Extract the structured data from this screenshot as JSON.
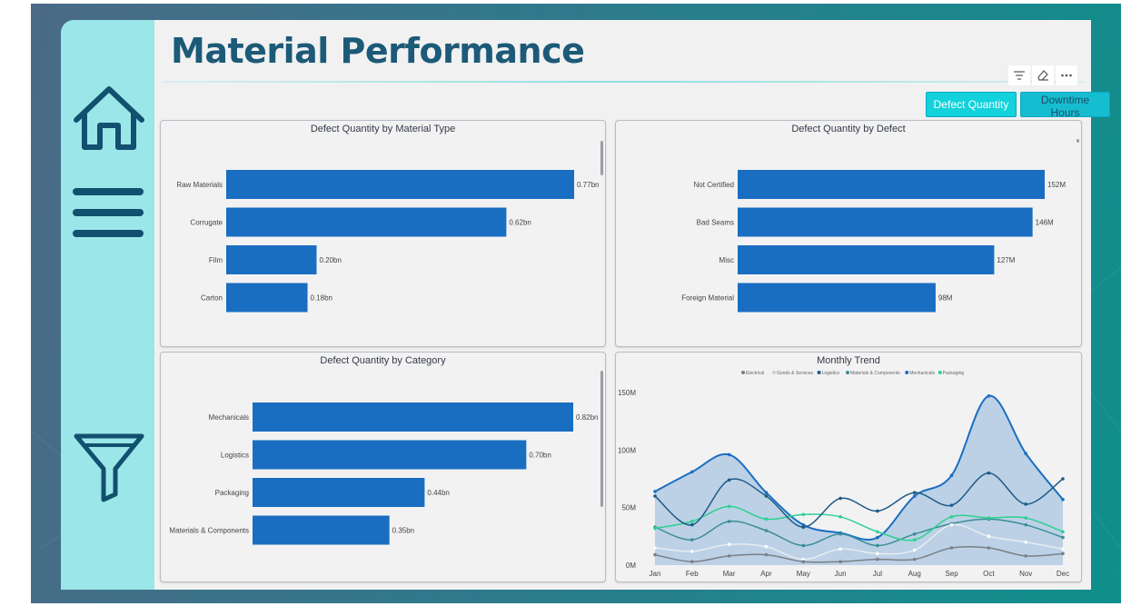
{
  "page": {
    "title": "Material Performance"
  },
  "sidebar": {
    "items": [
      {
        "name": "home",
        "icon": "home-icon"
      },
      {
        "name": "menu",
        "icon": "hamburger-menu-icon"
      },
      {
        "name": "filter",
        "icon": "filter-funnel-icon"
      }
    ]
  },
  "toolbar": {
    "icons": [
      "filter-icon",
      "eraser-icon",
      "more-options-icon"
    ]
  },
  "toggles": {
    "defect_label": "Defect Quantity",
    "downtime_label": "Downtime Hours"
  },
  "colors": {
    "bar": "#1a6ec1",
    "accent": "#13d2dc",
    "title": "#1c5a78",
    "sidebar": "#9be6e8"
  },
  "chart_data": [
    {
      "type": "bar",
      "orientation": "horizontal",
      "title": "Defect Quantity by Material Type",
      "categories": [
        "Raw Materials",
        "Corrugate",
        "Film",
        "Carton"
      ],
      "values": [
        0.77,
        0.62,
        0.2,
        0.18
      ],
      "labels": [
        "0.77bn",
        "0.62bn",
        "0.20bn",
        "0.18bn"
      ],
      "xlim": [
        0,
        0.77
      ]
    },
    {
      "type": "bar",
      "orientation": "horizontal",
      "title": "Defect Quantity by Defect",
      "categories": [
        "Not Certified",
        "Bad Seams",
        "Misc",
        "Foreign Material"
      ],
      "values": [
        152,
        146,
        127,
        98
      ],
      "labels": [
        "152M",
        "146M",
        "127M",
        "98M"
      ],
      "xlim": [
        0,
        152
      ]
    },
    {
      "type": "bar",
      "orientation": "horizontal",
      "title": "Defect Quantity by Category",
      "categories": [
        "Mechanicals",
        "Logistics",
        "Packaging",
        "Materials & Components"
      ],
      "values": [
        0.82,
        0.7,
        0.44,
        0.35
      ],
      "labels": [
        "0.82bn",
        "0.70bn",
        "0.44bn",
        "0.35bn"
      ],
      "xlim": [
        0,
        0.82
      ]
    },
    {
      "type": "line",
      "title": "Monthly Trend",
      "x": [
        "Jan",
        "Feb",
        "Mar",
        "Apr",
        "May",
        "Jun",
        "Jul",
        "Aug",
        "Sep",
        "Oct",
        "Nov",
        "Dec"
      ],
      "y_ticks": [
        "0M",
        "50M",
        "100M",
        "150M"
      ],
      "ylim": [
        0,
        150
      ],
      "series": [
        {
          "name": "Electrical",
          "color": "#7a7f86",
          "values": [
            9,
            3,
            8,
            9,
            3,
            3,
            5,
            5,
            15,
            15,
            8,
            10
          ]
        },
        {
          "name": "Goods & Services",
          "color": "#e8ecef",
          "values": [
            15,
            12,
            18,
            16,
            5,
            14,
            10,
            13,
            35,
            25,
            20,
            14
          ]
        },
        {
          "name": "Logistics",
          "color": "#1d5b86",
          "values": [
            60,
            35,
            74,
            60,
            33,
            58,
            47,
            63,
            52,
            80,
            53,
            75
          ]
        },
        {
          "name": "Materials & Components",
          "color": "#3a8e97",
          "values": [
            33,
            22,
            38,
            30,
            17,
            27,
            17,
            27,
            36,
            40,
            35,
            24
          ]
        },
        {
          "name": "Mechanicals",
          "color": "#1a6ec1",
          "area": true,
          "values": [
            64,
            81,
            96,
            63,
            35,
            28,
            24,
            60,
            78,
            147,
            97,
            57
          ]
        },
        {
          "name": "Packaging",
          "color": "#2dd090",
          "values": [
            32,
            38,
            51,
            40,
            44,
            42,
            29,
            22,
            42,
            41,
            41,
            29
          ]
        }
      ]
    }
  ]
}
